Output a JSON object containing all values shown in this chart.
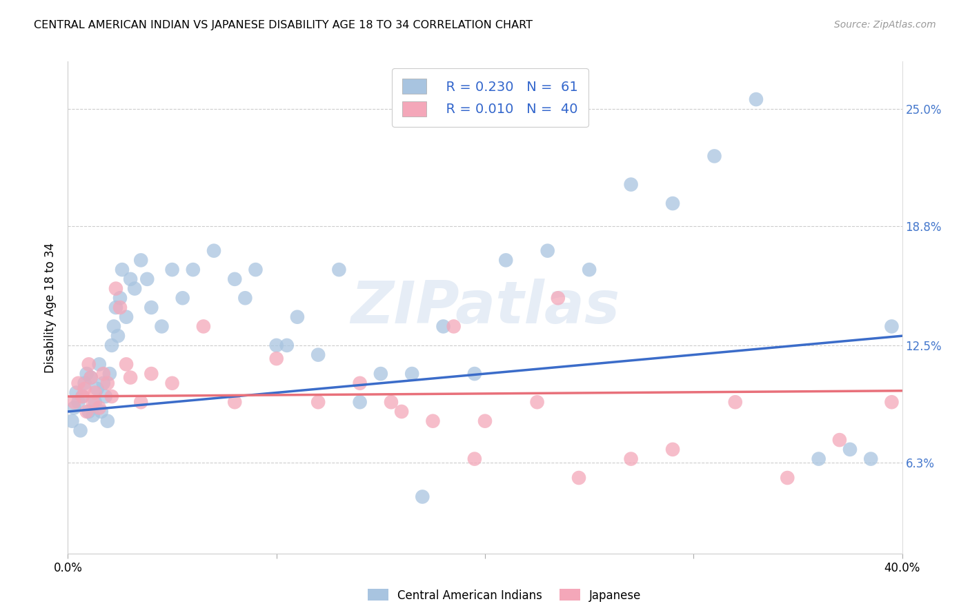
{
  "title": "CENTRAL AMERICAN INDIAN VS JAPANESE DISABILITY AGE 18 TO 34 CORRELATION CHART",
  "source": "Source: ZipAtlas.com",
  "ylabel": "Disability Age 18 to 34",
  "ytick_values": [
    6.3,
    12.5,
    18.8,
    25.0
  ],
  "xmin": 0.0,
  "xmax": 40.0,
  "ymin": 1.5,
  "ymax": 27.5,
  "watermark_text": "ZIPatlas",
  "legend_r1": "R = 0.230",
  "legend_n1": "N =  61",
  "legend_r2": "R = 0.010",
  "legend_n2": "N =  40",
  "color_blue": "#A8C4E0",
  "color_pink": "#F4A7B9",
  "line_blue": "#3B6CC9",
  "line_pink": "#E8707A",
  "blue_x": [
    0.2,
    0.3,
    0.4,
    0.5,
    0.6,
    0.7,
    0.8,
    0.9,
    1.0,
    1.1,
    1.2,
    1.3,
    1.4,
    1.5,
    1.6,
    1.7,
    1.8,
    1.9,
    2.0,
    2.1,
    2.2,
    2.3,
    2.4,
    2.5,
    2.6,
    2.8,
    3.0,
    3.2,
    3.5,
    3.8,
    4.0,
    4.5,
    5.0,
    5.5,
    6.0,
    7.0,
    8.0,
    9.0,
    10.0,
    11.0,
    13.0,
    15.0,
    16.5,
    18.0,
    19.5,
    21.0,
    23.0,
    25.0,
    27.0,
    29.0,
    31.0,
    33.0,
    36.0,
    37.5,
    38.5,
    39.5,
    8.5,
    10.5,
    12.0,
    14.0,
    17.0
  ],
  "blue_y": [
    8.5,
    9.2,
    10.0,
    9.5,
    8.0,
    9.8,
    10.5,
    11.0,
    9.0,
    10.8,
    8.8,
    9.5,
    10.2,
    11.5,
    9.0,
    10.5,
    9.8,
    8.5,
    11.0,
    12.5,
    13.5,
    14.5,
    13.0,
    15.0,
    16.5,
    14.0,
    16.0,
    15.5,
    17.0,
    16.0,
    14.5,
    13.5,
    16.5,
    15.0,
    16.5,
    17.5,
    16.0,
    16.5,
    12.5,
    14.0,
    16.5,
    11.0,
    11.0,
    13.5,
    11.0,
    17.0,
    17.5,
    16.5,
    21.0,
    20.0,
    22.5,
    25.5,
    6.5,
    7.0,
    6.5,
    13.5,
    15.0,
    12.5,
    12.0,
    9.5,
    4.5
  ],
  "pink_x": [
    0.3,
    0.5,
    0.7,
    0.8,
    0.9,
    1.0,
    1.1,
    1.2,
    1.3,
    1.5,
    1.7,
    1.9,
    2.1,
    2.3,
    2.5,
    2.8,
    3.0,
    3.5,
    4.0,
    5.0,
    6.5,
    8.0,
    10.0,
    12.0,
    14.0,
    16.0,
    18.5,
    20.0,
    22.5,
    24.5,
    27.0,
    29.0,
    32.0,
    34.5,
    37.0,
    39.5,
    15.5,
    17.5,
    19.5,
    23.5
  ],
  "pink_y": [
    9.5,
    10.5,
    9.8,
    10.2,
    9.0,
    11.5,
    10.8,
    9.5,
    10.0,
    9.2,
    11.0,
    10.5,
    9.8,
    15.5,
    14.5,
    11.5,
    10.8,
    9.5,
    11.0,
    10.5,
    13.5,
    9.5,
    11.8,
    9.5,
    10.5,
    9.0,
    13.5,
    8.5,
    9.5,
    5.5,
    6.5,
    7.0,
    9.5,
    5.5,
    7.5,
    9.5,
    9.5,
    8.5,
    6.5,
    15.0
  ],
  "blue_line_x0": 0.0,
  "blue_line_y0": 9.0,
  "blue_line_x1": 40.0,
  "blue_line_y1": 13.0,
  "pink_line_x0": 0.0,
  "pink_line_y0": 9.8,
  "pink_line_x1": 40.0,
  "pink_line_y1": 10.1
}
